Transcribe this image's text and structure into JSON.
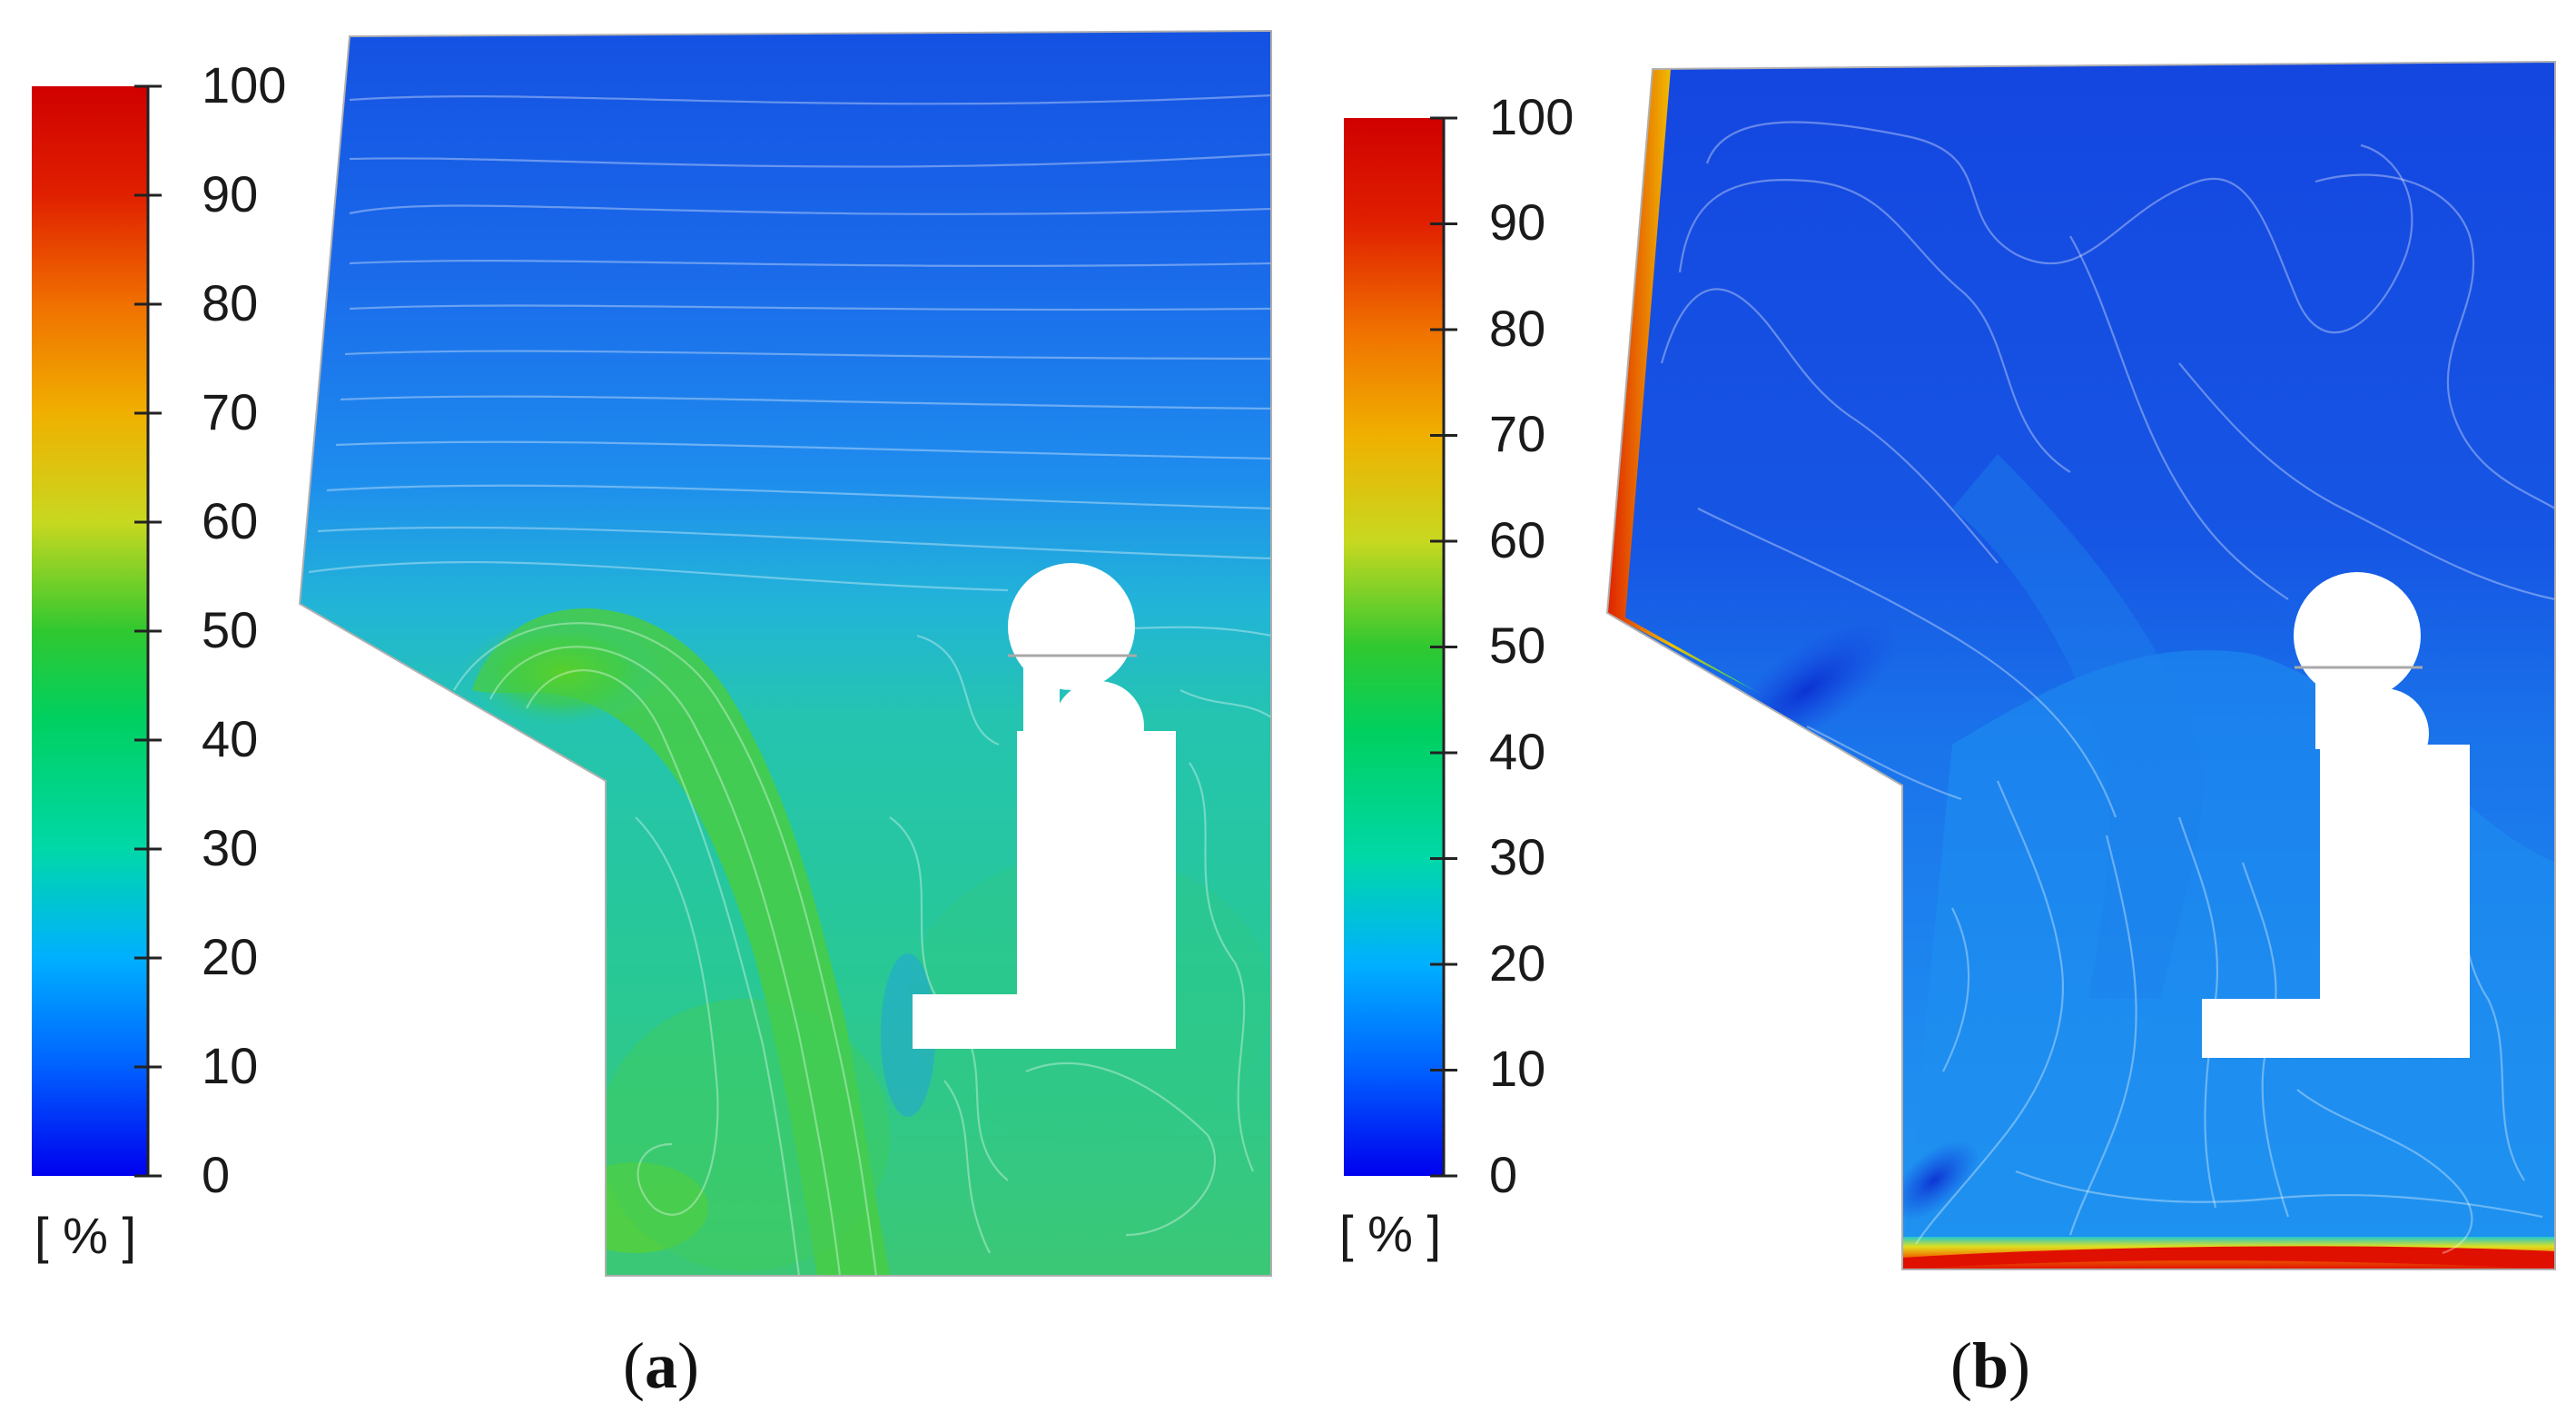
{
  "colorbar": {
    "ticks": [
      "100",
      "90",
      "80",
      "70",
      "60",
      "50",
      "40",
      "30",
      "20",
      "10",
      "0"
    ],
    "unit": "[ % ]",
    "gradient_stops": [
      "#0000ee",
      "#0060ff",
      "#00b0ff",
      "#00d8a8",
      "#00d060",
      "#30c830",
      "#c8d820",
      "#f0b000",
      "#f07000",
      "#e02000",
      "#d00000"
    ]
  },
  "panels": [
    {
      "caption_open": "(",
      "caption_letter": "a",
      "caption_close": ")",
      "dominant_color": "#30c8a0"
    },
    {
      "caption_open": "(",
      "caption_letter": "b",
      "caption_close": ")",
      "dominant_color": "#1e78e8"
    }
  ],
  "colors": {
    "deep_blue": "#1446e0",
    "mid_blue": "#1e82ec",
    "cyan": "#20c0d0",
    "teal": "#20c8a0",
    "green": "#3cc850",
    "bright_green": "#50d030",
    "red_strip": "#e82010"
  }
}
